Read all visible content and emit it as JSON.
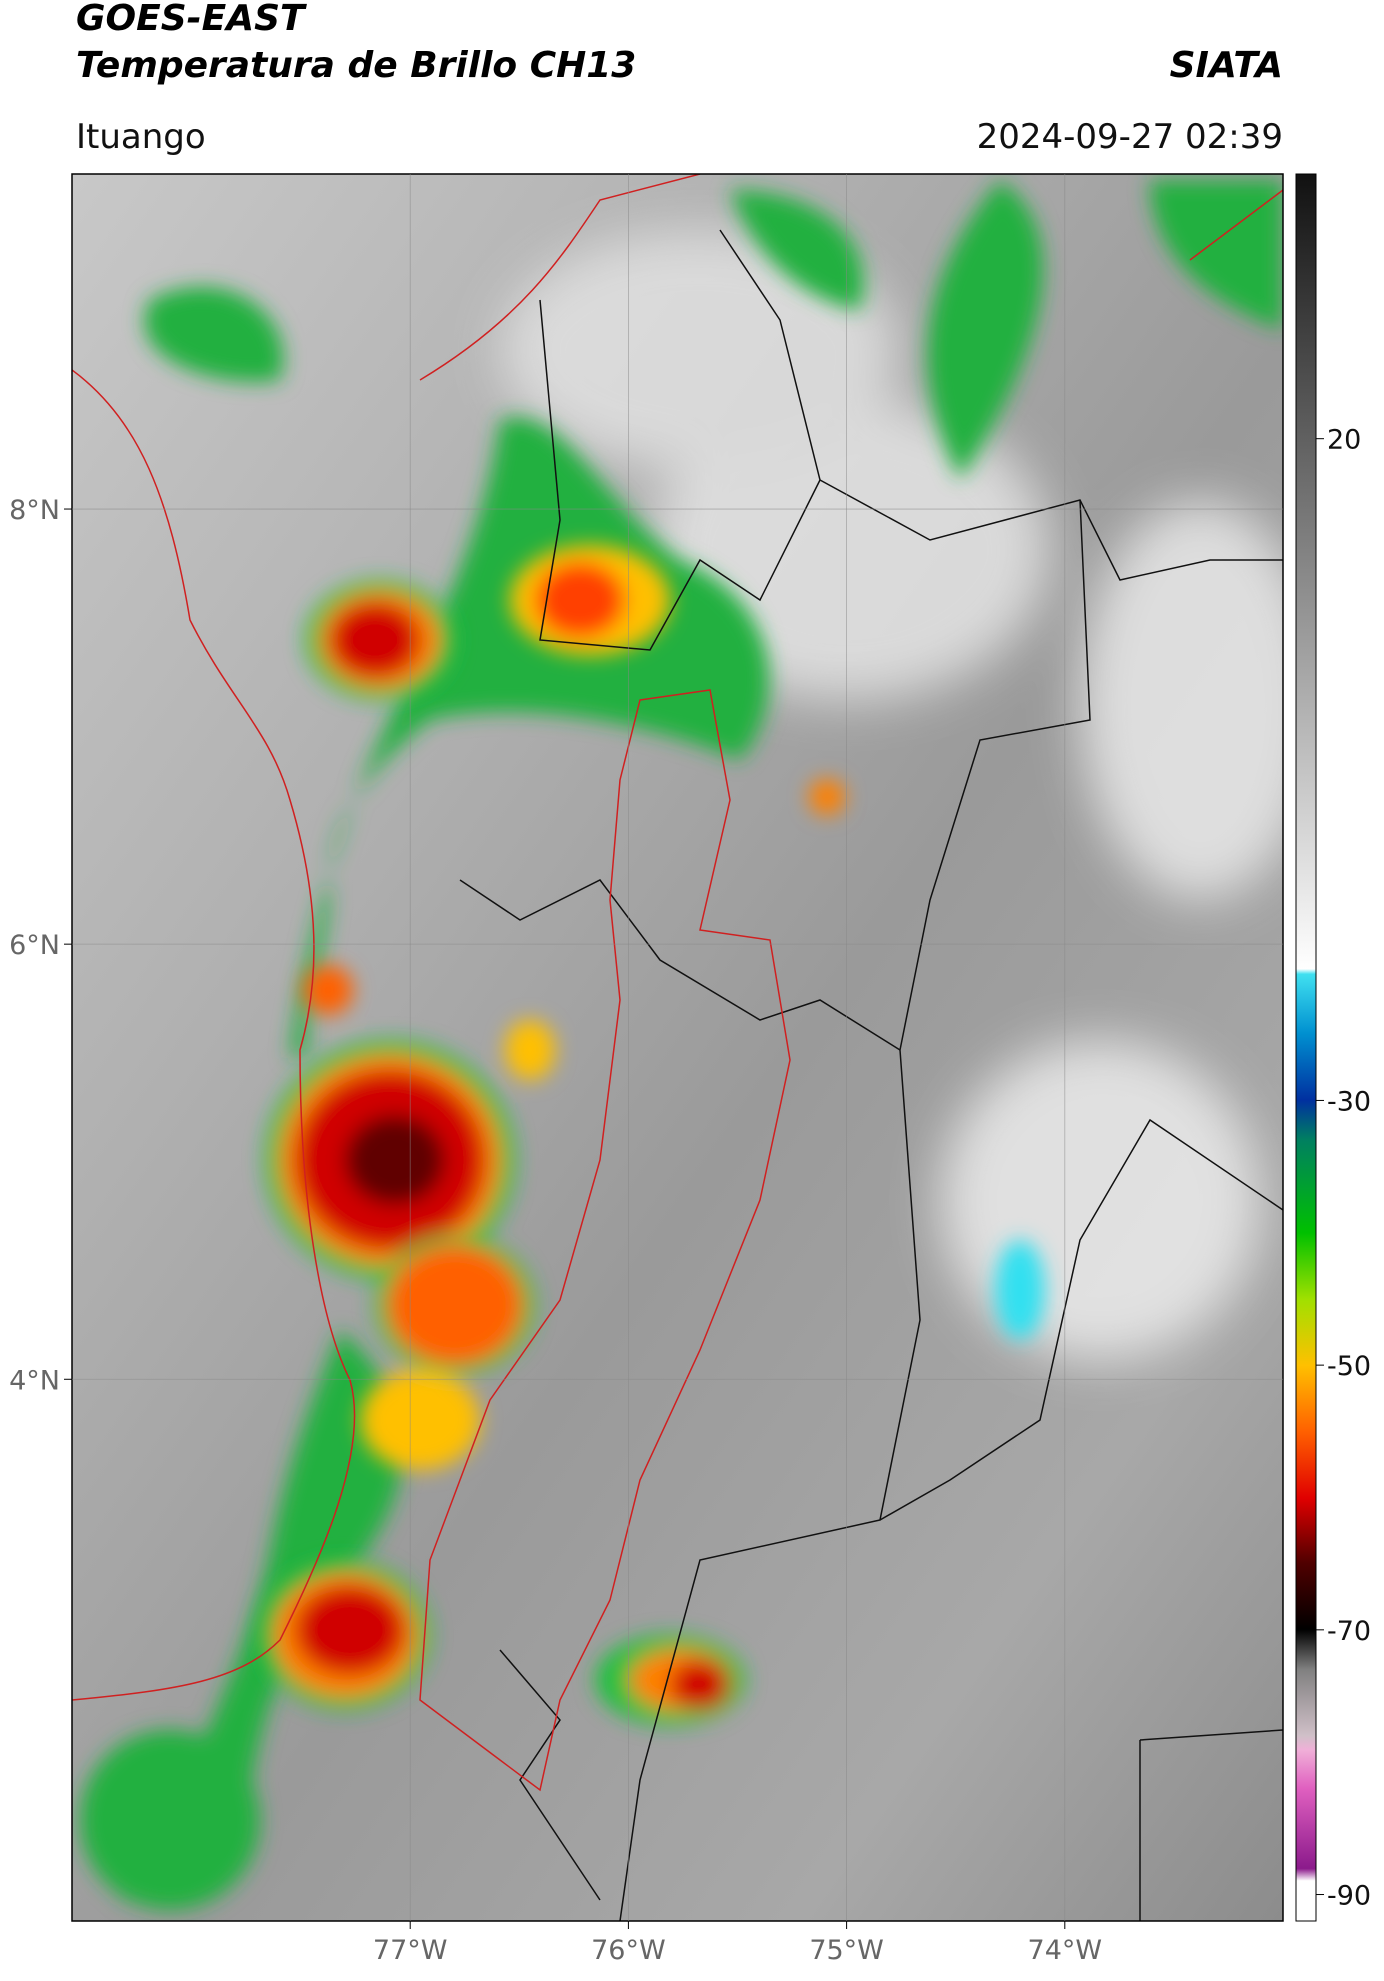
{
  "header": {
    "title_line1": "GOES-EAST",
    "title_line2": "Temperatura de Brillo CH13",
    "agency": "SIATA",
    "location": "Ituango",
    "datetime": "2024-09-27 02:39"
  },
  "map": {
    "xlim": [
      -78.55,
      -73.0
    ],
    "ylim": [
      1.51,
      9.54
    ],
    "xticks": [
      {
        "value": -77,
        "label": "77°W"
      },
      {
        "value": -76,
        "label": "76°W"
      },
      {
        "value": -75,
        "label": "75°W"
      },
      {
        "value": -74,
        "label": "74°W"
      }
    ],
    "yticks": [
      {
        "value": 8,
        "label": "8°N"
      },
      {
        "value": 6,
        "label": "6°N"
      },
      {
        "value": 4,
        "label": "4°N"
      }
    ]
  },
  "colorbar": {
    "lim": [
      -92,
      40
    ],
    "ticks": [
      20,
      -30,
      -50,
      -70,
      -90
    ]
  }
}
